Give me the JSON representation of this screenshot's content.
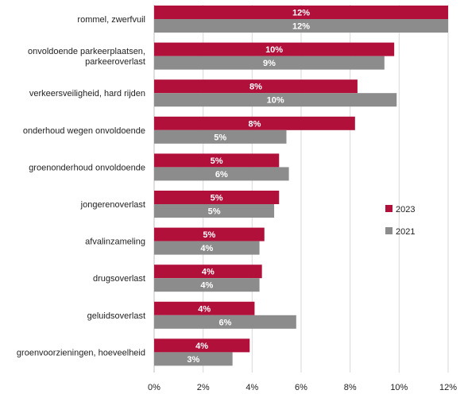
{
  "chart_data": {
    "type": "bar",
    "orientation": "horizontal",
    "categories": [
      [
        "rommel, zwerfvuil"
      ],
      [
        "onvoldoende parkeerplaatsen,",
        "parkeeroverlast"
      ],
      [
        "verkeersveiligheid, hard rijden"
      ],
      [
        "onderhoud wegen onvoldoende"
      ],
      [
        "groenonderhoud onvoldoende"
      ],
      [
        "jongerenoverlast"
      ],
      [
        "afvalinzameling"
      ],
      [
        "drugsoverlast"
      ],
      [
        "geluidsoverlast"
      ],
      [
        "groenvoorzieningen, hoeveelheid"
      ]
    ],
    "series": [
      {
        "name": "2023",
        "color": "#b0103a",
        "values": [
          12,
          9.8,
          8.3,
          8.2,
          5.1,
          5.1,
          4.5,
          4.4,
          4.1,
          3.9
        ],
        "labels": [
          "12%",
          "10%",
          "8%",
          "8%",
          "5%",
          "5%",
          "5%",
          "4%",
          "4%",
          "4%"
        ]
      },
      {
        "name": "2021",
        "color": "#8c8c8c",
        "values": [
          12,
          9.4,
          9.9,
          5.4,
          5.5,
          4.9,
          4.3,
          4.3,
          5.8,
          3.2
        ],
        "labels": [
          "12%",
          "9%",
          "10%",
          "5%",
          "6%",
          "5%",
          "4%",
          "4%",
          "6%",
          "3%"
        ]
      }
    ],
    "xlim": [
      0,
      12
    ],
    "xticks": [
      0,
      2,
      4,
      6,
      8,
      10,
      12
    ],
    "xtick_labels": [
      "0%",
      "2%",
      "4%",
      "6%",
      "8%",
      "10%",
      "12%"
    ],
    "title": "",
    "xlabel": "",
    "ylabel": "",
    "grid": true,
    "legend_position": "right"
  }
}
